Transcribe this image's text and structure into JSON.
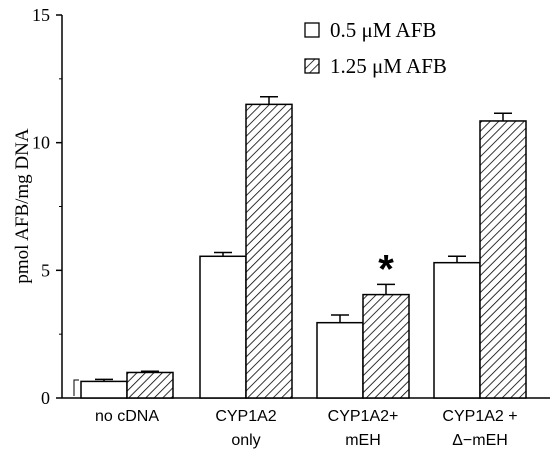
{
  "chart_data": {
    "type": "bar",
    "title": "",
    "xlabel": "",
    "ylabel": "pmol AFB/mg DNA",
    "ylim": [
      0,
      15
    ],
    "yticks": [
      0,
      5,
      10,
      15
    ],
    "grid": false,
    "legend_position": "top-right",
    "categories": [
      [
        "no cDNA"
      ],
      [
        "CYP1A2",
        "only"
      ],
      [
        "CYP1A2+",
        "mEH"
      ],
      [
        "CYP1A2 +",
        "Δ−mEH"
      ]
    ],
    "series": [
      {
        "name": "0.5 μM AFB",
        "pattern": "open",
        "values": [
          0.65,
          5.55,
          2.95,
          5.3
        ],
        "errors": [
          0.08,
          0.15,
          0.3,
          0.25
        ]
      },
      {
        "name": "1.25 μM AFB",
        "pattern": "hatched",
        "values": [
          1.0,
          11.5,
          4.05,
          10.85
        ],
        "errors": [
          0.05,
          0.3,
          0.4,
          0.3
        ]
      }
    ],
    "annotations": [
      {
        "text": "*",
        "category_index": 2,
        "series_index": 1
      }
    ]
  }
}
